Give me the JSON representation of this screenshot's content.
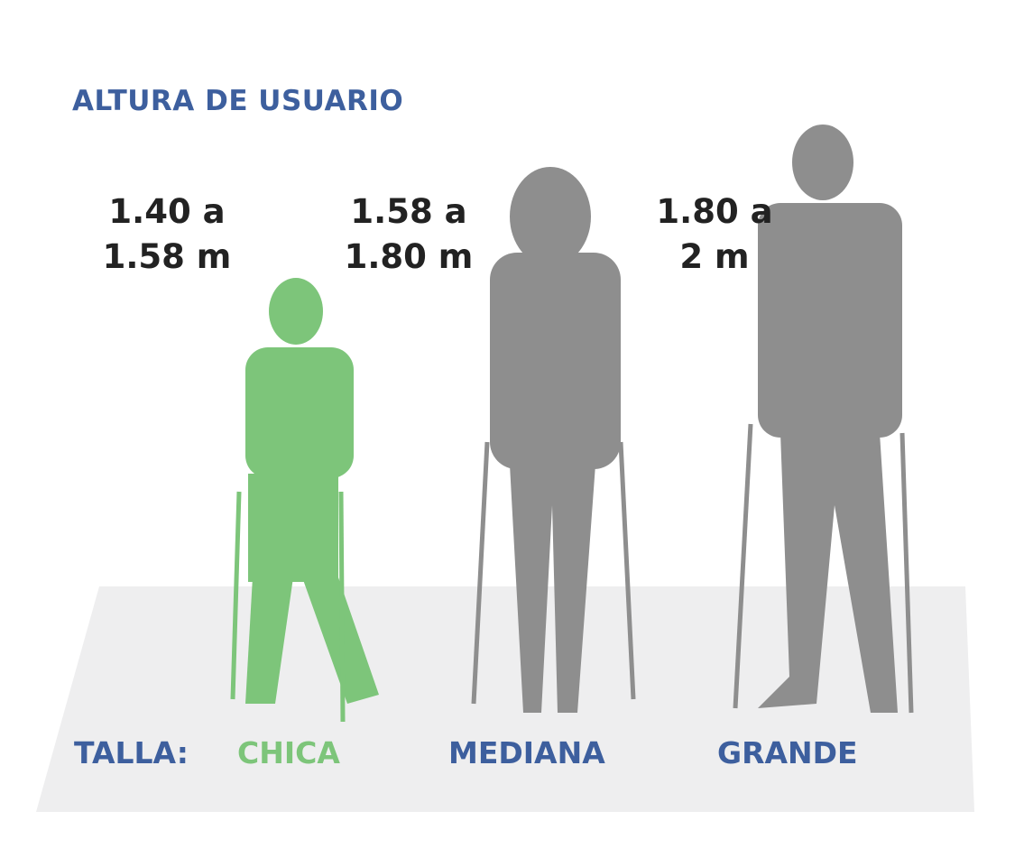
{
  "title": "ALTURA DE USUARIO",
  "ranges": [
    {
      "line1": "1.40 a",
      "line2": "1.58 m"
    },
    {
      "line1": "1.58 a",
      "line2": "1.80 m"
    },
    {
      "line1": "1.80 a",
      "line2": "2 m"
    }
  ],
  "size_label": "TALLA:",
  "sizes": [
    "CHICA",
    "MEDIANA",
    "GRANDE"
  ],
  "colors": {
    "blue": "#3d5f9e",
    "green": "#7dc57a",
    "gray": "#8e8e8e",
    "floor": "#eeeeef"
  }
}
